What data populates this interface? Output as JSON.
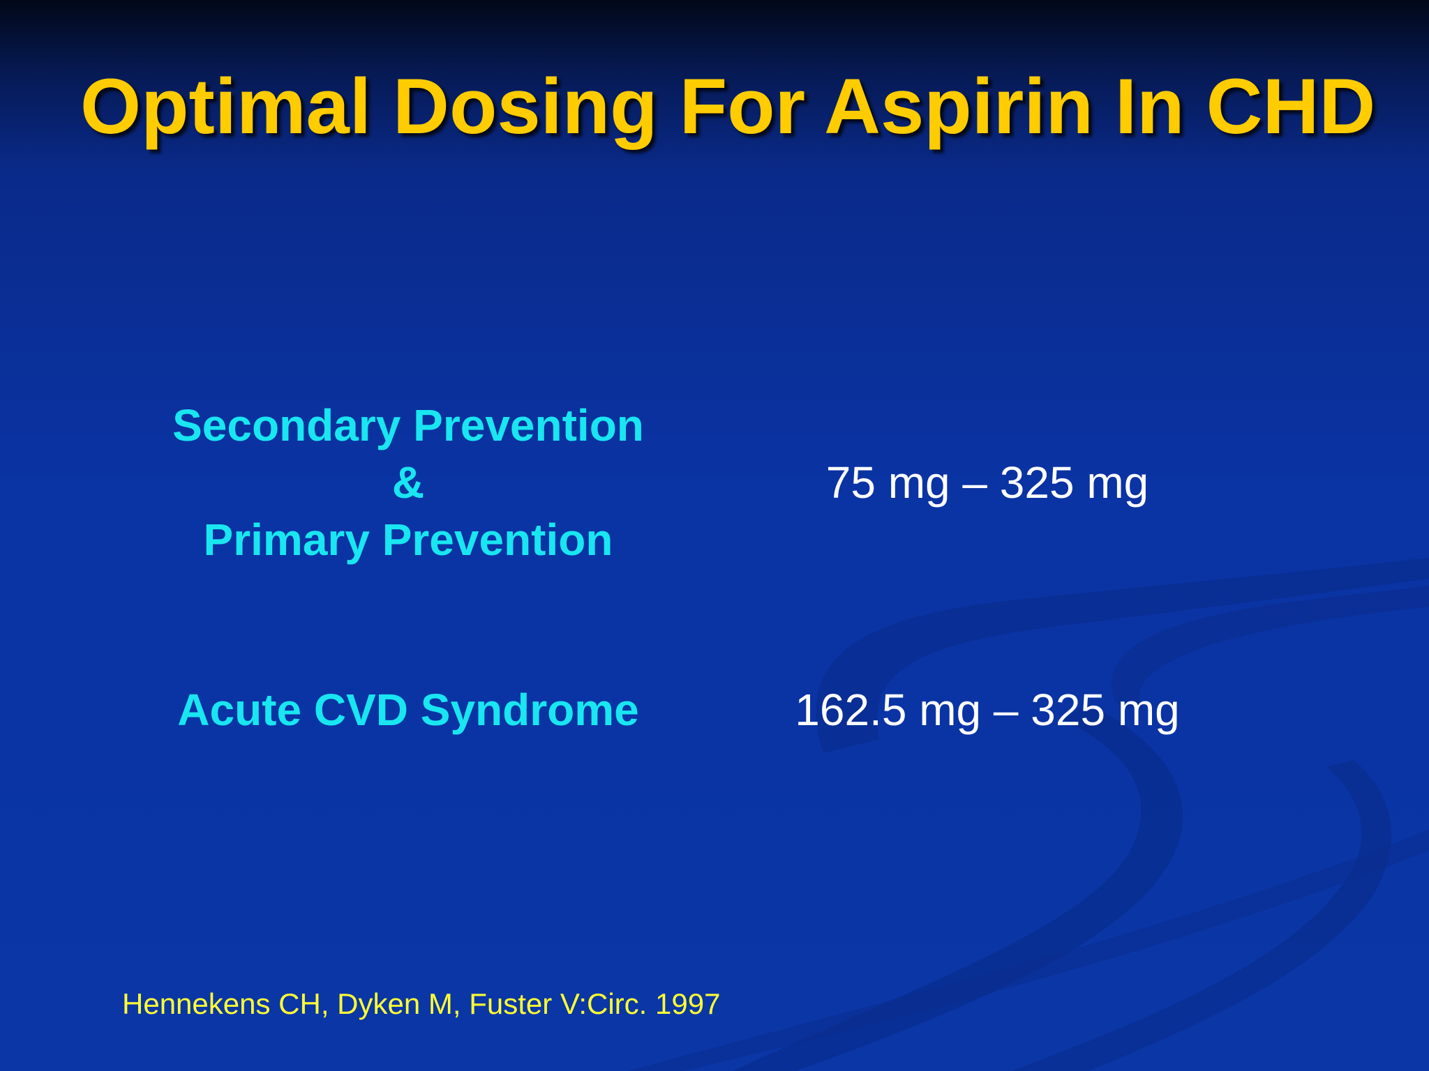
{
  "slide": {
    "title": "Optimal Dosing For Aspirin In CHD",
    "rows": [
      {
        "label_lines": [
          "Secondary Prevention",
          "&",
          "Primary Prevention"
        ],
        "dose": "75 mg – 325 mg"
      },
      {
        "label_lines": [
          "Acute CVD Syndrome"
        ],
        "dose": "162.5 mg – 325 mg"
      }
    ],
    "citation": "Hennekens CH, Dyken M, Fuster V:Circ. 1997"
  },
  "colors": {
    "background": "#0a33a3",
    "title": "#ffcc00",
    "label": "#19e6f0",
    "dose": "#ffffff",
    "citation": "#ffff33"
  }
}
